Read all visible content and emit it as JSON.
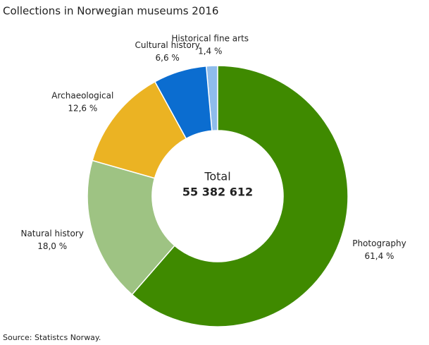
{
  "chart_data": {
    "type": "donut",
    "title": "Collections in Norwegian museums 2016",
    "categories": [
      "Photography",
      "Natural history",
      "Archaeological",
      "Cultural history",
      "Historical fine arts"
    ],
    "values": [
      61.4,
      18.0,
      12.6,
      6.6,
      1.4
    ],
    "value_labels": [
      "61,4 %",
      "18,0 %",
      "12,6 %",
      "6,6 %",
      "1,4 %"
    ],
    "colors": [
      "#3f8a00",
      "#9ec383",
      "#ebb323",
      "#0b6dd0",
      "#8ebcec"
    ],
    "center_title": "Total",
    "center_value": "55 382 612",
    "source": "Source: Statistcs Norway."
  }
}
